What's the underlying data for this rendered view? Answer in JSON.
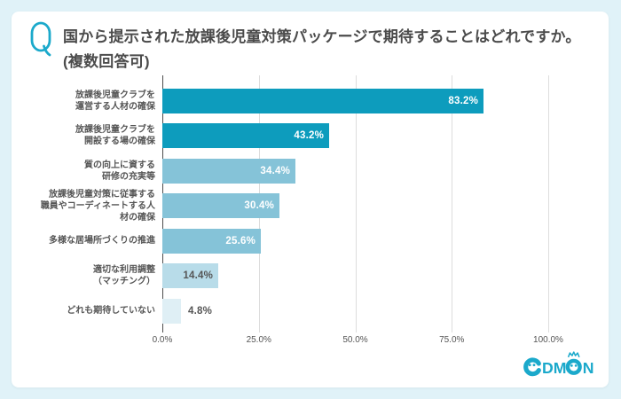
{
  "question": {
    "icon_label": "Q",
    "line1": "国から提示された放課後児童対策パッケージで期待することはどれですか。",
    "line2": "(複数回答可)"
  },
  "chart_data": {
    "type": "bar",
    "orientation": "horizontal",
    "title": "国から提示された放課後児童対策パッケージで期待することはどれですか。(複数回答可)",
    "categories": [
      "放課後児童クラブを\n運営する人材の確保",
      "放課後児童クラブを\n開設する場の確保",
      "質の向上に資する\n研修の充実等",
      "放課後児童対策に従事する\n職員やコーディネートする人\n材の確保",
      "多様な居場所づくりの推進",
      "適切な利用調整\n（マッチング）",
      "どれも期待していない"
    ],
    "values": [
      83.2,
      43.2,
      34.4,
      30.4,
      25.6,
      14.4,
      4.8
    ],
    "value_labels": [
      "83.2%",
      "43.2%",
      "34.4%",
      "30.4%",
      "25.6%",
      "14.4%",
      "4.8%"
    ],
    "bar_colors": [
      "#0D9CBD",
      "#0D9CBD",
      "#85C3D8",
      "#85C3D8",
      "#85C3D8",
      "#B8DCE9",
      "#DFEFF5"
    ],
    "value_label_colors": [
      "#FFFFFF",
      "#FFFFFF",
      "#FFFFFF",
      "#FFFFFF",
      "#FFFFFF",
      "#555555",
      "#555555"
    ],
    "value_label_inside": [
      true,
      true,
      true,
      true,
      true,
      true,
      false
    ],
    "x_tick_labels": [
      "0.0%",
      "25.0%",
      "50.0%",
      "75.0%",
      "100.0%"
    ],
    "x_tick_values": [
      0,
      25,
      50,
      75,
      100
    ],
    "xlim": [
      0,
      100
    ],
    "grid": true,
    "legend": false,
    "xlabel": "",
    "ylabel": ""
  },
  "logo": {
    "brand": "CODMON",
    "letters_dm": "DM",
    "letters_n": "N"
  },
  "colors": {
    "page_background": "#E0F2F8",
    "card_background": "#FFFFFF",
    "accent_teal": "#1BA9CB",
    "bar_dark": "#0D9CBD",
    "bar_medium": "#85C3D8",
    "bar_light": "#B8DCE9",
    "bar_lightest": "#DFEFF5",
    "title_text": "#4B4B4B",
    "label_text": "#555555",
    "gridline": "#DDDDDD",
    "axis_line": "#4D4D4D"
  }
}
